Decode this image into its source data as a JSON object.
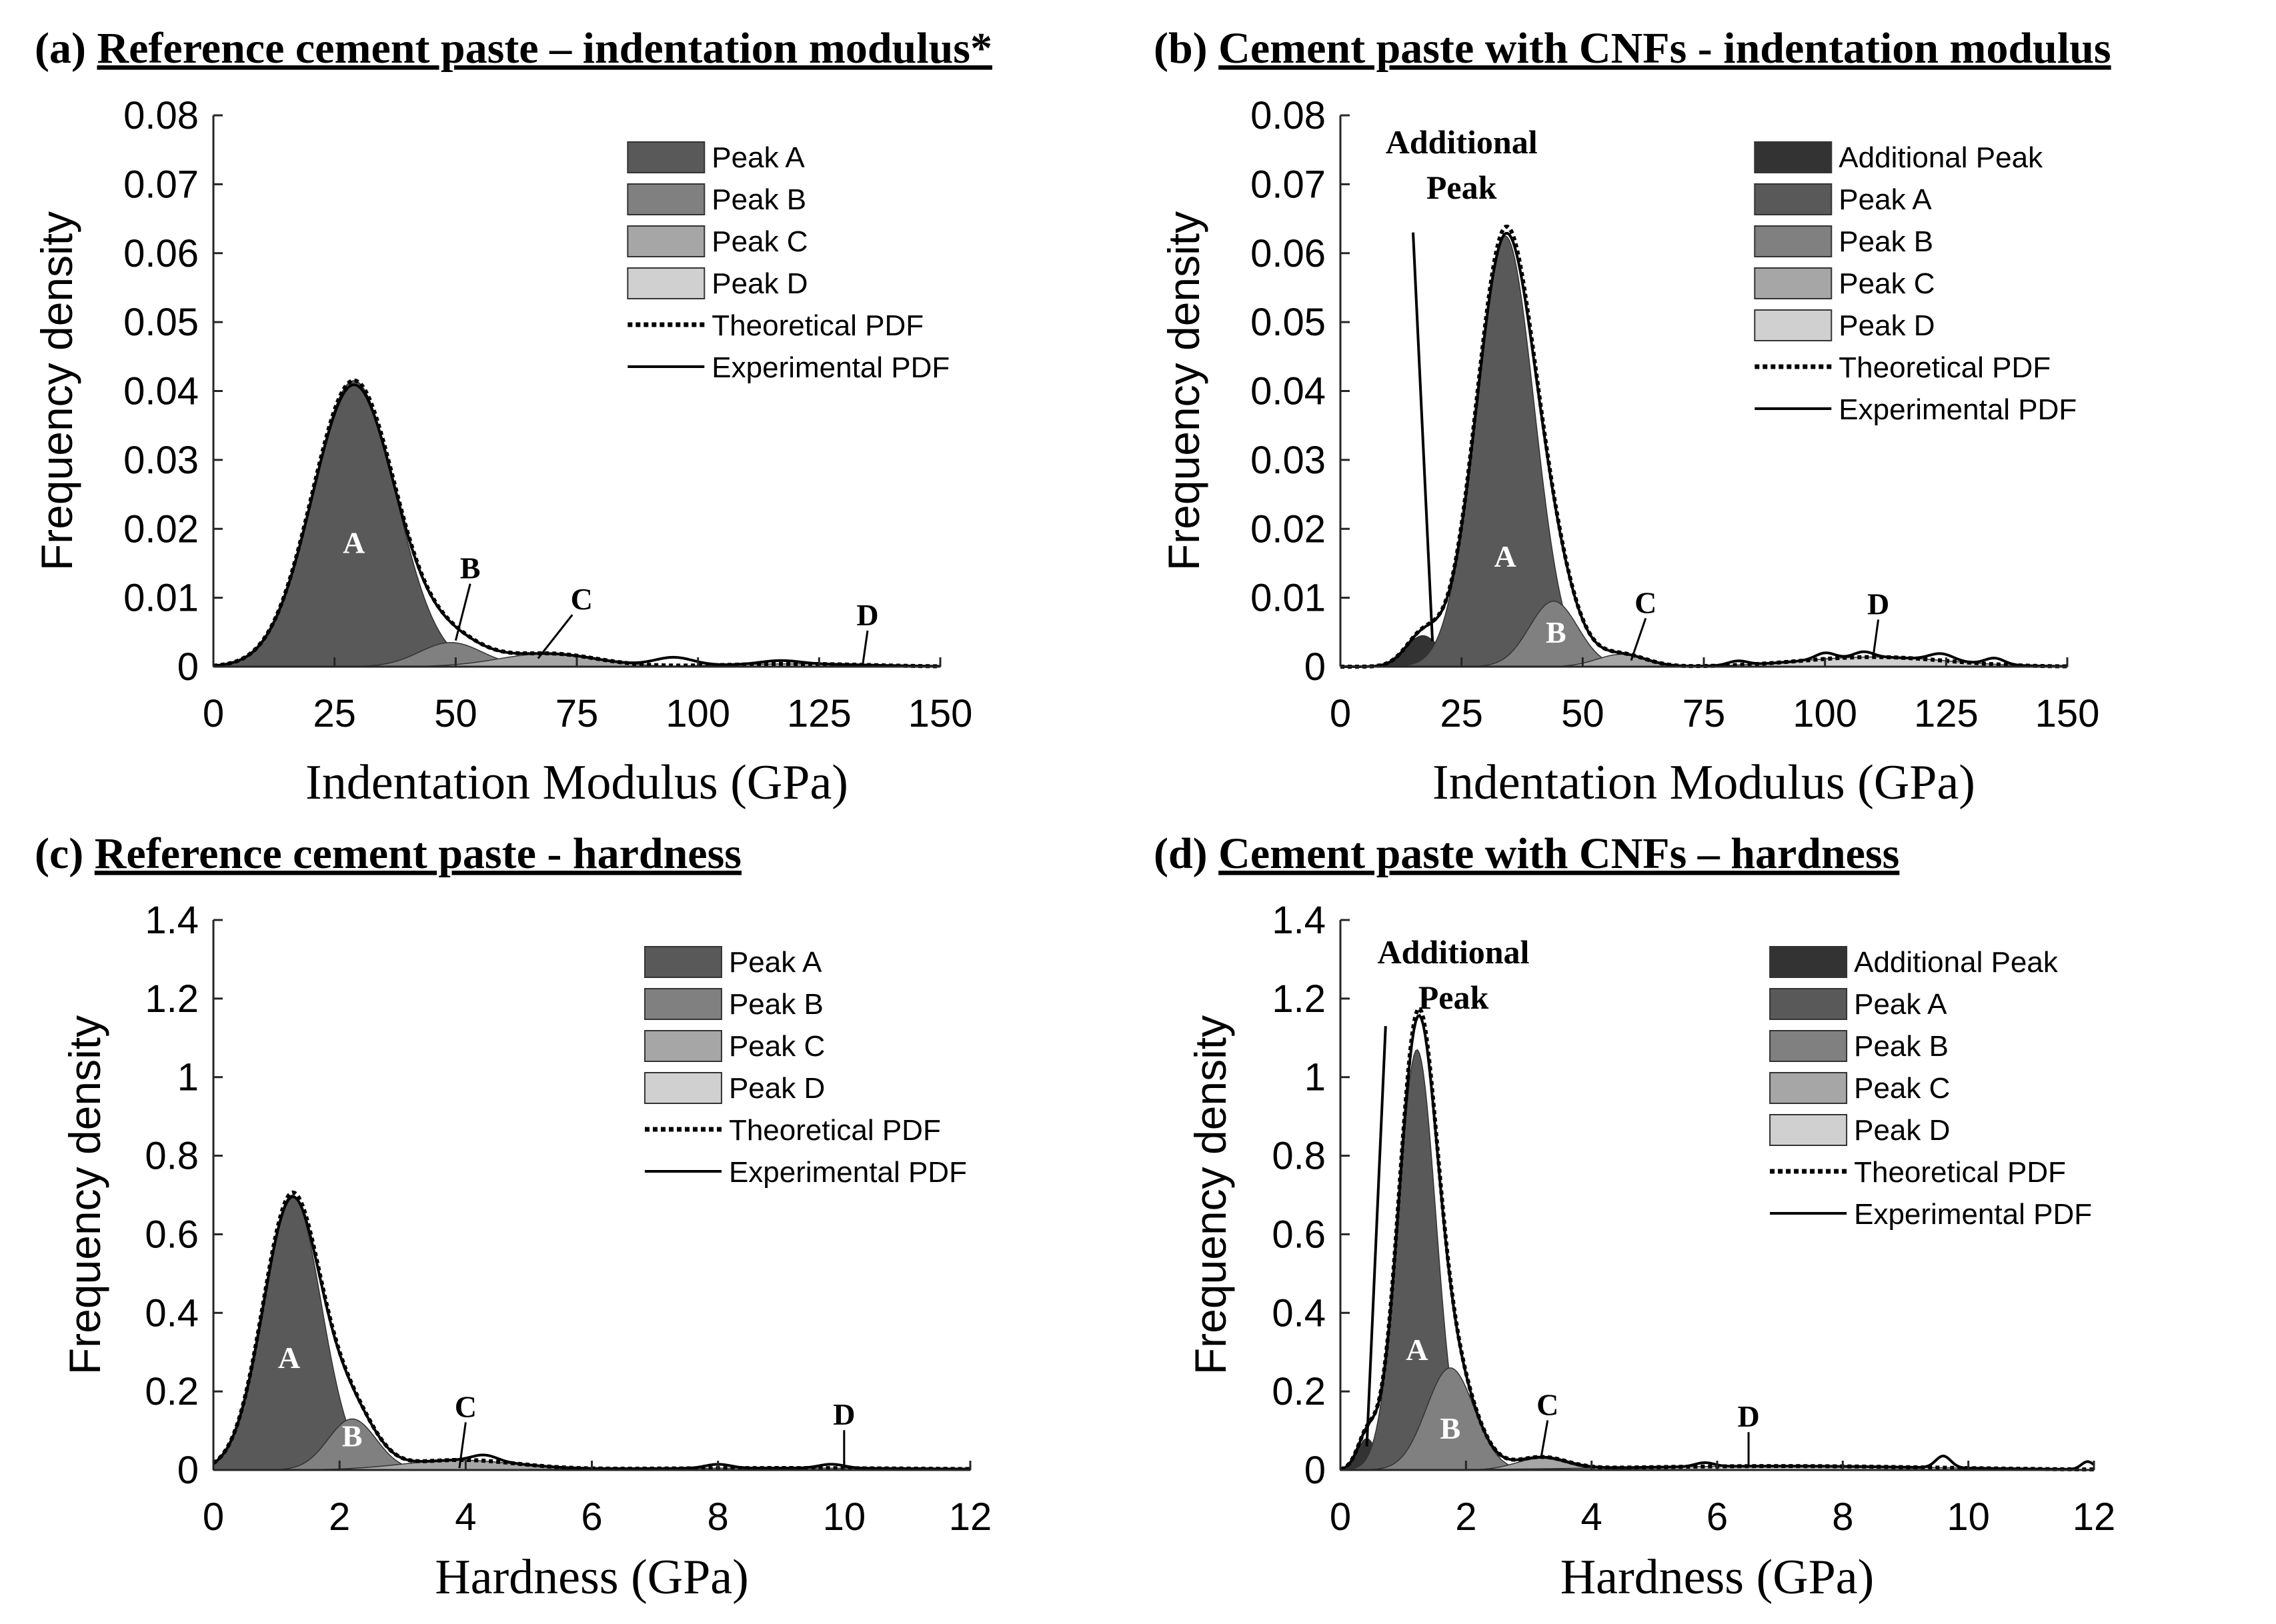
{
  "chart_data": [
    {
      "type": "area",
      "panel": "(a)",
      "title": "Reference cement paste – indentation modulus*",
      "xlabel": "Indentation Modulus (GPa)",
      "ylabel": "Frequency density",
      "xlim": [
        0,
        150
      ],
      "ylim": [
        0,
        0.08
      ],
      "xticks": [
        0,
        25,
        50,
        75,
        100,
        125,
        150
      ],
      "xtick_labels": [
        "0",
        "25",
        "50",
        "75",
        "100",
        "125",
        "150"
      ],
      "yticks": [
        0,
        0.01,
        0.02,
        0.03,
        0.04,
        0.05,
        0.06,
        0.07,
        0.08
      ],
      "ytick_labels": [
        "0",
        "0.01",
        "0.02",
        "0.03",
        "0.04",
        "0.05",
        "0.06",
        "0.07",
        "0.08"
      ],
      "legend_position": "top-right",
      "legend": [
        "Peak A",
        "Peak B",
        "Peak C",
        "Peak D",
        "Theoretical PDF",
        "Experimental PDF"
      ],
      "peaks": [
        {
          "name": "Peak A",
          "label": "A",
          "mean": 29,
          "sd": 8.6,
          "amp": 0.0415,
          "color": "#595959",
          "label_x": 29,
          "label_y": 0.0165,
          "label_color": "#ffffff"
        },
        {
          "name": "Peak B",
          "label": "B",
          "mean": 49,
          "sd": 6.5,
          "amp": 0.0035,
          "color": "#808080",
          "label_x": 53,
          "label_y": 0.0128,
          "label_color": "#000000",
          "pointer_to": [
            50,
            0.0038
          ]
        },
        {
          "name": "Peak C",
          "label": "C",
          "mean": 69,
          "sd": 10,
          "amp": 0.0019,
          "color": "#a6a6a6",
          "label_x": 76,
          "label_y": 0.0083,
          "label_color": "#000000",
          "pointer_to": [
            67,
            0.0012
          ]
        },
        {
          "name": "Peak D",
          "label": "D",
          "mean": 120,
          "sd": 15,
          "amp": 0.0004,
          "color": "#d0d0d0",
          "label_x": 135,
          "label_y": 0.006,
          "label_color": "#000000",
          "pointer_to": [
            134,
            0.0003
          ]
        }
      ],
      "experimental_wiggles": [
        {
          "x": 95,
          "amp": 0.0012,
          "w": 4
        },
        {
          "x": 117,
          "amp": 0.0005,
          "w": 4
        }
      ]
    },
    {
      "type": "area",
      "panel": "(b)",
      "title": "Cement paste with CNFs - indentation modulus",
      "xlabel": "Indentation Modulus (GPa)",
      "ylabel": "Frequency density",
      "xlim": [
        0,
        150
      ],
      "ylim": [
        0,
        0.08
      ],
      "xticks": [
        0,
        25,
        50,
        75,
        100,
        125,
        150
      ],
      "xtick_labels": [
        "0",
        "25",
        "50",
        "75",
        "100",
        "125",
        "150"
      ],
      "yticks": [
        0,
        0.01,
        0.02,
        0.03,
        0.04,
        0.05,
        0.06,
        0.07,
        0.08
      ],
      "ytick_labels": [
        "0",
        "0.01",
        "0.02",
        "0.03",
        "0.04",
        "0.05",
        "0.06",
        "0.07",
        "0.08"
      ],
      "legend_position": "top-right",
      "legend": [
        "Additional Peak",
        "Peak A",
        "Peak B",
        "Peak C",
        "Peak D",
        "Theoretical PDF",
        "Experimental PDF"
      ],
      "callout": {
        "lines": [
          "Additional",
          "Peak"
        ],
        "x": 25,
        "y": 0.0745,
        "pointer_from": [
          15,
          0.063
        ],
        "pointer_to": [
          19,
          0.0037
        ]
      },
      "peaks": [
        {
          "name": "Additional Peak",
          "label": "",
          "mean": 17,
          "sd": 3.5,
          "amp": 0.0045,
          "color": "#333333"
        },
        {
          "name": "Peak A",
          "label": "A",
          "mean": 34,
          "sd": 6,
          "amp": 0.0625,
          "color": "#595959",
          "label_x": 34,
          "label_y": 0.0145,
          "label_color": "#ffffff"
        },
        {
          "name": "Peak B",
          "label": "B",
          "mean": 44,
          "sd": 5,
          "amp": 0.0095,
          "color": "#808080",
          "label_x": 44.5,
          "label_y": 0.0035,
          "label_color": "#ffffff"
        },
        {
          "name": "Peak C",
          "label": "C",
          "mean": 58,
          "sd": 5,
          "amp": 0.0018,
          "color": "#a6a6a6",
          "label_x": 63,
          "label_y": 0.0078,
          "label_color": "#000000",
          "pointer_to": [
            60,
            0.0009
          ]
        },
        {
          "name": "Peak D",
          "label": "D",
          "mean": 110,
          "sd": 15,
          "amp": 0.0014,
          "color": "#d0d0d0",
          "label_x": 111,
          "label_y": 0.0076,
          "label_color": "#000000",
          "pointer_to": [
            110,
            0.0017
          ]
        }
      ],
      "experimental_wiggles": [
        {
          "x": 82,
          "amp": 0.0006,
          "w": 2
        },
        {
          "x": 100,
          "amp": 0.0009,
          "w": 2
        },
        {
          "x": 108,
          "amp": 0.0008,
          "w": 2
        },
        {
          "x": 124,
          "amp": 0.001,
          "w": 2.5
        },
        {
          "x": 135,
          "amp": 0.0009,
          "w": 2
        }
      ]
    },
    {
      "type": "area",
      "panel": "(c)",
      "title": "Reference cement paste - hardness",
      "xlabel": "Hardness (GPa)",
      "ylabel": "Frequency density",
      "xlim": [
        0,
        12
      ],
      "ylim": [
        0,
        1.4
      ],
      "xticks": [
        0,
        2,
        4,
        6,
        8,
        10,
        12
      ],
      "xtick_labels": [
        "0",
        "2",
        "4",
        "6",
        "8",
        "10",
        "12"
      ],
      "yticks": [
        0,
        0.2,
        0.4,
        0.6,
        0.8,
        1.0,
        1.2,
        1.4
      ],
      "ytick_labels": [
        "0",
        "0.2",
        "0.4",
        "0.6",
        "0.8",
        "1",
        "1.2",
        "1.4"
      ],
      "legend_position": "top-right",
      "legend": [
        "Peak A",
        "Peak B",
        "Peak C",
        "Peak D",
        "Theoretical PDF",
        "Experimental PDF"
      ],
      "peaks": [
        {
          "name": "Peak A",
          "label": "A",
          "mean": 1.25,
          "sd": 0.46,
          "amp": 0.7,
          "color": "#595959",
          "label_x": 1.2,
          "label_y": 0.26,
          "label_color": "#ffffff"
        },
        {
          "name": "Peak B",
          "label": "B",
          "mean": 2.2,
          "sd": 0.38,
          "amp": 0.13,
          "color": "#808080",
          "label_x": 2.2,
          "label_y": 0.06,
          "label_color": "#ffffff"
        },
        {
          "name": "Peak C",
          "label": "C",
          "mean": 3.9,
          "sd": 0.9,
          "amp": 0.025,
          "color": "#a6a6a6",
          "label_x": 4.0,
          "label_y": 0.135,
          "label_color": "#000000",
          "pointer_to": [
            3.9,
            0.005
          ]
        },
        {
          "name": "Peak D",
          "label": "D",
          "mean": 9,
          "sd": 2.5,
          "amp": 0.005,
          "color": "#d0d0d0",
          "label_x": 10.0,
          "label_y": 0.115,
          "label_color": "#000000",
          "pointer_to": [
            10.0,
            0.005
          ]
        }
      ],
      "experimental_wiggles": [
        {
          "x": 4.3,
          "amp": 0.015,
          "w": 0.2
        },
        {
          "x": 8.0,
          "amp": 0.01,
          "w": 0.2
        },
        {
          "x": 9.8,
          "amp": 0.01,
          "w": 0.2
        }
      ]
    },
    {
      "type": "area",
      "panel": "(d)",
      "title": "Cement paste with CNFs – hardness",
      "xlabel": "Hardness (GPa)",
      "ylabel": "Frequency density",
      "xlim": [
        0,
        12
      ],
      "ylim": [
        0,
        1.4
      ],
      "xticks": [
        0,
        2,
        4,
        6,
        8,
        10,
        12
      ],
      "xtick_labels": [
        "0",
        "2",
        "4",
        "6",
        "8",
        "10",
        "12"
      ],
      "yticks": [
        0,
        0.2,
        0.4,
        0.6,
        0.8,
        1.0,
        1.2,
        1.4
      ],
      "ytick_labels": [
        "0",
        "0.2",
        "0.4",
        "0.6",
        "0.8",
        "1",
        "1.2",
        "1.4"
      ],
      "legend_position": "top-right",
      "legend": [
        "Additional Peak",
        "Peak A",
        "Peak B",
        "Peak C",
        "Peak D",
        "Theoretical PDF",
        "Experimental PDF"
      ],
      "callout": {
        "lines": [
          "Additional",
          "Peak"
        ],
        "x": 1.8,
        "y": 1.29,
        "pointer_from": [
          0.72,
          1.13
        ],
        "pointer_to": [
          0.42,
          0.06
        ]
      },
      "peaks": [
        {
          "name": "Additional Peak",
          "label": "",
          "mean": 0.42,
          "sd": 0.15,
          "amp": 0.08,
          "color": "#333333"
        },
        {
          "name": "Peak A",
          "label": "A",
          "mean": 1.22,
          "sd": 0.3,
          "amp": 1.07,
          "color": "#595959",
          "label_x": 1.22,
          "label_y": 0.28,
          "label_color": "#ffffff"
        },
        {
          "name": "Peak B",
          "label": "B",
          "mean": 1.75,
          "sd": 0.38,
          "amp": 0.26,
          "color": "#808080",
          "label_x": 1.75,
          "label_y": 0.08,
          "label_color": "#ffffff"
        },
        {
          "name": "Peak C",
          "label": "C",
          "mean": 3.2,
          "sd": 0.4,
          "amp": 0.03,
          "color": "#a6a6a6",
          "label_x": 3.3,
          "label_y": 0.14,
          "label_color": "#000000",
          "pointer_to": [
            3.2,
            0.035
          ]
        },
        {
          "name": "Peak D",
          "label": "D",
          "mean": 7,
          "sd": 2.5,
          "amp": 0.01,
          "color": "#d0d0d0",
          "label_x": 6.5,
          "label_y": 0.11,
          "label_color": "#000000",
          "pointer_to": [
            6.5,
            0.01
          ]
        }
      ],
      "experimental_wiggles": [
        {
          "x": 5.8,
          "amp": 0.01,
          "w": 0.15
        },
        {
          "x": 9.6,
          "amp": 0.03,
          "w": 0.12
        },
        {
          "x": 11.9,
          "amp": 0.02,
          "w": 0.1
        }
      ]
    }
  ]
}
